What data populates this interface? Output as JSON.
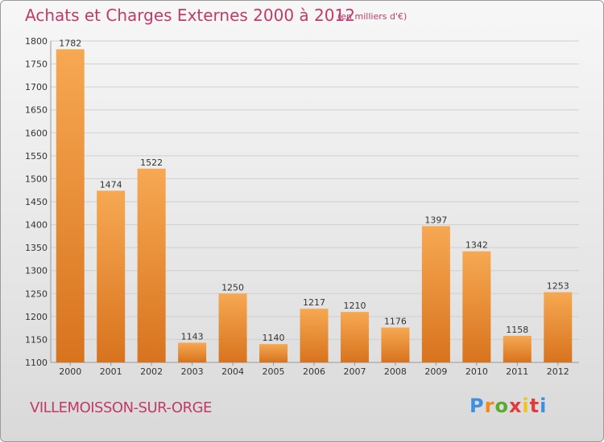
{
  "header": {
    "title": "Achats et Charges Externes 2000 à 2012",
    "unit": "(en milliers d'€)"
  },
  "footer": {
    "city": "VILLEMOISSON-SUR-ORGE",
    "brand": "Proxiti"
  },
  "colors": {
    "title": "#c03a6a",
    "bar_light": "#f6a650",
    "bar_dark": "#d9741f"
  },
  "chart_data": {
    "type": "bar",
    "title": "Achats et Charges Externes 2000 à 2012",
    "xlabel": "",
    "ylabel": "",
    "categories": [
      "2000",
      "2001",
      "2002",
      "2003",
      "2004",
      "2005",
      "2006",
      "2007",
      "2008",
      "2009",
      "2010",
      "2011",
      "2012"
    ],
    "values": [
      1782,
      1474,
      1522,
      1143,
      1250,
      1140,
      1217,
      1210,
      1176,
      1397,
      1342,
      1158,
      1253
    ],
    "ylim": [
      1100,
      1800
    ],
    "yticks": [
      1100,
      1150,
      1200,
      1250,
      1300,
      1350,
      1400,
      1450,
      1500,
      1550,
      1600,
      1650,
      1700,
      1750,
      1800
    ],
    "grid": true,
    "data_labels": true
  }
}
